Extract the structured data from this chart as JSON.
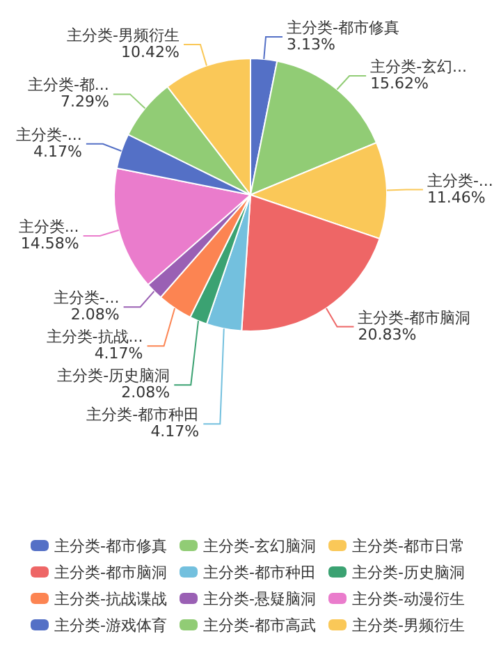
{
  "chart_data": {
    "type": "pie",
    "categories": [
      "主分类-都市修真",
      "主分类-玄幻脑洞",
      "主分类-都市日常",
      "主分类-都市脑洞",
      "主分类-都市种田",
      "主分类-历史脑洞",
      "主分类-抗战谍战",
      "主分类-悬疑脑洞",
      "主分类-动漫衍生",
      "主分类-游戏体育",
      "主分类-都市高武",
      "主分类-男频衍生"
    ],
    "values": [
      3.13,
      15.62,
      11.46,
      20.83,
      4.17,
      2.08,
      4.17,
      2.08,
      14.58,
      4.17,
      7.29,
      10.42
    ],
    "colors": [
      "#5470c6",
      "#91cc75",
      "#fac858",
      "#ee6666",
      "#73c0de",
      "#3ba272",
      "#fc8452",
      "#9a60b4",
      "#ea7ccc",
      "#5470c6",
      "#91cc75",
      "#fac858"
    ],
    "value_labels": [
      "主分类-都市修真\n3.13%",
      "主分类-玄幻...\n15.62%",
      "主分类-...\n11.46%",
      "主分类-都市脑洞\n20.83%",
      "主分类-都市种田\n4.17%",
      "主分类-历史脑洞\n2.08%",
      "主分类-抗战...\n4.17%",
      "主分类-...\n2.08%",
      "主分类...\n14.58%",
      "主分类-...\n4.17%",
      "主分类-都...\n7.29%",
      "主分类-男频衍生\n10.42%"
    ],
    "legend": "bottom"
  }
}
